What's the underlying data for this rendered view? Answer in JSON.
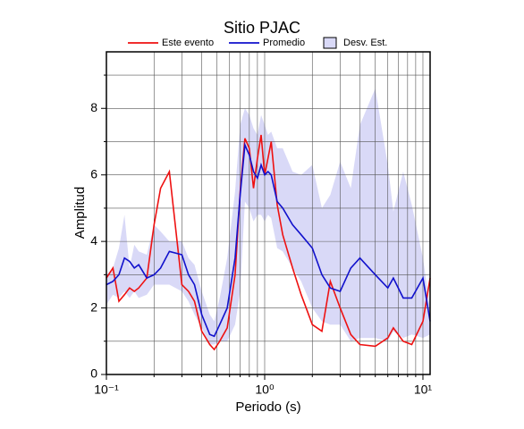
{
  "chart_data": {
    "type": "line",
    "title": "Sitio PJAC",
    "xlabel": "Periodo (s)",
    "ylabel": "Amplitud",
    "xscale": "log",
    "grid": true,
    "xlim": [
      0.1,
      11.1
    ],
    "ylim": [
      0,
      9.7
    ],
    "xticks": [
      {
        "value": 0.1,
        "label": "10⁻¹"
      },
      {
        "value": 1,
        "label": "10⁰"
      },
      {
        "value": 10,
        "label": "10¹"
      }
    ],
    "xminor": [
      0.2,
      0.3,
      0.4,
      0.5,
      0.6,
      0.7,
      0.8,
      0.9,
      2,
      3,
      4,
      5,
      6,
      7,
      8,
      9
    ],
    "yticks": [
      0,
      2,
      4,
      6,
      8
    ],
    "yminor": [
      1,
      3,
      5,
      7,
      9
    ],
    "x": [
      0.1,
      0.11,
      0.12,
      0.13,
      0.14,
      0.15,
      0.16,
      0.18,
      0.2,
      0.22,
      0.25,
      0.3,
      0.33,
      0.36,
      0.4,
      0.45,
      0.48,
      0.52,
      0.58,
      0.65,
      0.7,
      0.75,
      0.8,
      0.85,
      0.9,
      0.95,
      1.0,
      1.05,
      1.1,
      1.2,
      1.3,
      1.5,
      1.7,
      2.0,
      2.3,
      2.6,
      3.0,
      3.5,
      4.0,
      5.0,
      6.0,
      6.5,
      7.5,
      8.5,
      10,
      11.1
    ],
    "band": {
      "name": "Desv. Est.",
      "color": "#d9d9f7",
      "upper": [
        3.0,
        3.2,
        3.8,
        4.8,
        3.2,
        3.9,
        3.7,
        3.6,
        4.5,
        4.3,
        4.0,
        4.0,
        3.5,
        3.3,
        2.5,
        1.8,
        1.6,
        2.3,
        3.5,
        5.5,
        7.5,
        8.0,
        7.8,
        7.4,
        7.2,
        7.8,
        7.5,
        7.2,
        7.3,
        6.8,
        6.8,
        6.1,
        6.0,
        6.3,
        5.0,
        5.4,
        6.4,
        5.6,
        7.5,
        8.6,
        6.3,
        4.9,
        6.1,
        5.1,
        3.5,
        2.0
      ],
      "lower": [
        2.1,
        2.4,
        2.3,
        2.5,
        2.3,
        2.5,
        2.3,
        2.4,
        2.7,
        2.7,
        2.7,
        2.5,
        2.2,
        1.8,
        1.4,
        0.9,
        0.9,
        1.0,
        1.0,
        1.5,
        2.5,
        5.2,
        5.0,
        4.6,
        4.8,
        4.8,
        4.6,
        4.8,
        4.7,
        3.8,
        3.7,
        3.2,
        2.8,
        2.0,
        1.6,
        1.5,
        1.5,
        1.0,
        1.1,
        1.1,
        1.0,
        1.3,
        1.1,
        1.2,
        1.1,
        1.2
      ]
    },
    "series": [
      {
        "name": "Este evento",
        "color": "#ee1111",
        "values": [
          2.9,
          3.2,
          2.2,
          2.4,
          2.6,
          2.5,
          2.6,
          2.9,
          4.5,
          5.6,
          6.1,
          2.7,
          2.5,
          2.2,
          1.3,
          0.9,
          0.75,
          1.0,
          1.4,
          3.0,
          5.5,
          7.1,
          6.8,
          5.6,
          6.5,
          7.2,
          6.0,
          6.5,
          7.0,
          5.1,
          4.2,
          3.2,
          2.4,
          1.5,
          1.3,
          2.8,
          2.0,
          1.2,
          0.9,
          0.85,
          1.1,
          1.4,
          1.0,
          0.9,
          1.6,
          2.9
        ]
      },
      {
        "name": "Promedio",
        "color": "#1111cc",
        "values": [
          2.7,
          2.8,
          3.0,
          3.5,
          3.4,
          3.2,
          3.3,
          2.9,
          3.0,
          3.2,
          3.7,
          3.6,
          3.0,
          2.7,
          1.8,
          1.2,
          1.15,
          1.5,
          2.0,
          3.5,
          5.4,
          6.9,
          6.6,
          6.1,
          5.9,
          6.3,
          6.0,
          6.1,
          6.0,
          5.2,
          5.0,
          4.5,
          4.2,
          3.8,
          3.0,
          2.6,
          2.5,
          3.2,
          3.5,
          3.0,
          2.6,
          2.9,
          2.3,
          2.3,
          2.9,
          1.6
        ]
      }
    ]
  }
}
